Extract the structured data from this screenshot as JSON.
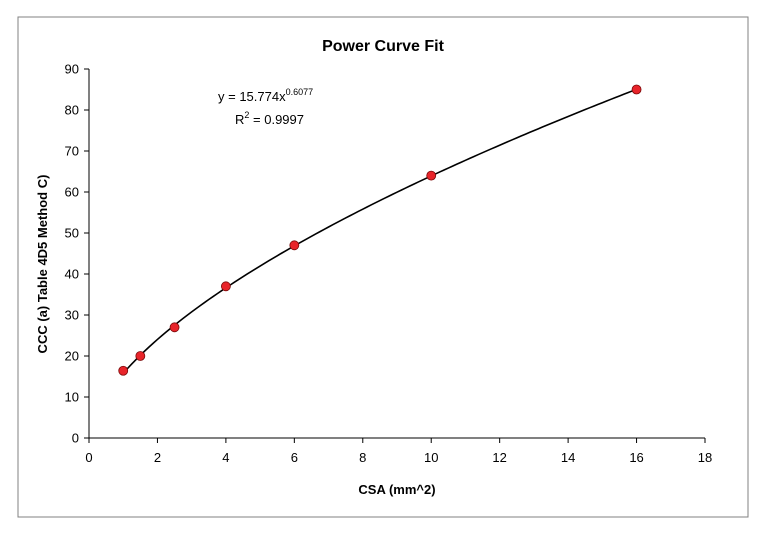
{
  "chart_data": {
    "type": "scatter",
    "title": "Power Curve Fit",
    "xlabel": "CSA (mm^2)",
    "ylabel": "CCC (a) Table 4D5 Method C)",
    "xlim": [
      0,
      18
    ],
    "ylim": [
      0,
      90
    ],
    "xticks": [
      0,
      2,
      4,
      6,
      8,
      10,
      12,
      14,
      16,
      18
    ],
    "yticks": [
      0,
      10,
      20,
      30,
      40,
      50,
      60,
      70,
      80,
      90
    ],
    "grid": false,
    "legend": "none",
    "points": [
      {
        "x": 1,
        "y": 16.4
      },
      {
        "x": 1.5,
        "y": 20
      },
      {
        "x": 2.5,
        "y": 27
      },
      {
        "x": 4,
        "y": 37
      },
      {
        "x": 6,
        "y": 47
      },
      {
        "x": 10,
        "y": 64
      },
      {
        "x": 16,
        "y": 85
      }
    ],
    "trendline": {
      "type": "power",
      "coefficient": 15.774,
      "exponent": 0.6077,
      "equation_prefix": "y = 15.774x",
      "equation_exponent": "0.6077",
      "r2_prefix": "R",
      "r2_sup": "2",
      "r2_suffix": " = 0.9997"
    },
    "colors": {
      "marker": "#e8242a",
      "marker_edge": "#7a0a0a",
      "line": "#000000",
      "axis": "#000000",
      "frame": "#808080"
    }
  }
}
